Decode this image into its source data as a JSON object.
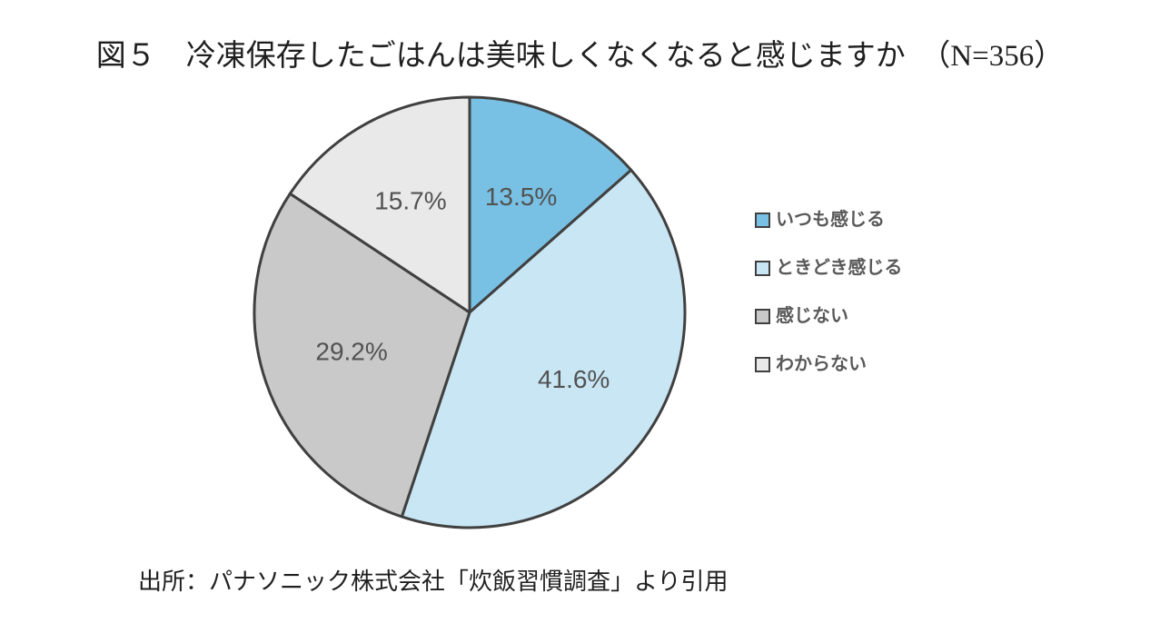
{
  "figure": {
    "title": "図５　冷凍保存したごはんは美味しくなくなると感じますか　（N=356）",
    "source": "出所：パナソニック株式会社「炊飯習慣調査」より引用"
  },
  "chart_data": {
    "type": "pie",
    "title": "図５　冷凍保存したごはんは美味しくなくなると感じますか",
    "sample_size_label": "N=356",
    "start_angle_deg": 0,
    "direction": "clockwise",
    "legend_position": "right",
    "value_suffix": "%",
    "stroke_color": "#404040",
    "label_color": "#525252",
    "slices": [
      {
        "label": "いつも感じる",
        "value": 13.5,
        "color": "#79c1e4"
      },
      {
        "label": "ときどき感じる",
        "value": 41.6,
        "color": "#c9e6f4"
      },
      {
        "label": "感じない",
        "value": 29.2,
        "color": "#c9c9c9"
      },
      {
        "label": "わからない",
        "value": 15.7,
        "color": "#e9e9e9"
      }
    ]
  }
}
